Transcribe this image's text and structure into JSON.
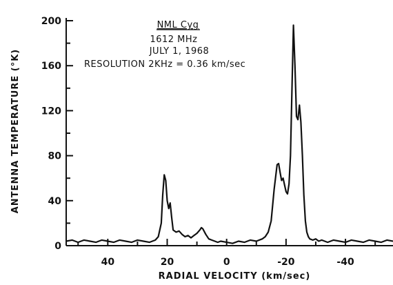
{
  "chart_data": {
    "type": "line",
    "xlabel": "RADIAL VELOCITY (km/sec)",
    "ylabel": "ANTENNA TEMPERATURE (°K)",
    "xlim": [
      54,
      -56
    ],
    "ylim": [
      0,
      200
    ],
    "x_reversed": true,
    "x_ticks": [
      40,
      20,
      0,
      -20,
      -40
    ],
    "x_tick_labels": [
      "40",
      "20",
      "0",
      "-20",
      "-40"
    ],
    "x_minor_ticks": [
      50,
      30,
      10,
      -10,
      -30,
      -50
    ],
    "y_ticks": [
      0,
      40,
      80,
      120,
      160,
      200
    ],
    "y_tick_labels": [
      "0",
      "40",
      "80",
      "120",
      "160",
      "200"
    ],
    "y_minor_ticks": [
      20,
      60,
      100,
      140,
      180
    ],
    "annotations": [
      "NML Cyg",
      "1612 MHz",
      "JULY 1, 1968",
      "RESOLUTION  2KHz = 0.36 km/sec"
    ],
    "grid": false,
    "series": [
      {
        "x": [
          54,
          52,
          50,
          48,
          46,
          44,
          42,
          40,
          38,
          36,
          34,
          32,
          30,
          28,
          26,
          24,
          23,
          22,
          21.5,
          21,
          20.5,
          20,
          19.5,
          19,
          18.5,
          18,
          17,
          16,
          15,
          14,
          13,
          12,
          11,
          10,
          9,
          8.5,
          8,
          7,
          6,
          5,
          4,
          3,
          2,
          0,
          -2,
          -4,
          -6,
          -8,
          -10,
          -12,
          -13,
          -14,
          -15,
          -16,
          -17,
          -17.5,
          -18,
          -18.5,
          -19,
          -19.5,
          -20,
          -20.5,
          -21,
          -21.5,
          -22,
          -22.5,
          -23,
          -23.5,
          -24,
          -24.5,
          -25,
          -25.5,
          -26,
          -26.5,
          -27,
          -27.5,
          -28,
          -29,
          -30,
          -31,
          -32,
          -34,
          -36,
          -38,
          -40,
          -42,
          -44,
          -46,
          -48,
          -50,
          -52,
          -54,
          -56
        ],
        "y": [
          4,
          5,
          3,
          5,
          4,
          3,
          5,
          4,
          3,
          5,
          4,
          3,
          5,
          4,
          3,
          5,
          8,
          20,
          45,
          63,
          58,
          40,
          33,
          38,
          25,
          14,
          12,
          13,
          10,
          8,
          9,
          7,
          9,
          11,
          14,
          16,
          15,
          10,
          6,
          5,
          4,
          3,
          4,
          3,
          2,
          4,
          3,
          5,
          4,
          6,
          8,
          12,
          22,
          50,
          72,
          73,
          65,
          58,
          60,
          54,
          48,
          46,
          55,
          80,
          140,
          196,
          160,
          115,
          112,
          125,
          110,
          80,
          45,
          22,
          12,
          8,
          6,
          5,
          6,
          4,
          5,
          3,
          5,
          4,
          3,
          5,
          4,
          3,
          5,
          4,
          3,
          5,
          4
        ]
      }
    ]
  }
}
